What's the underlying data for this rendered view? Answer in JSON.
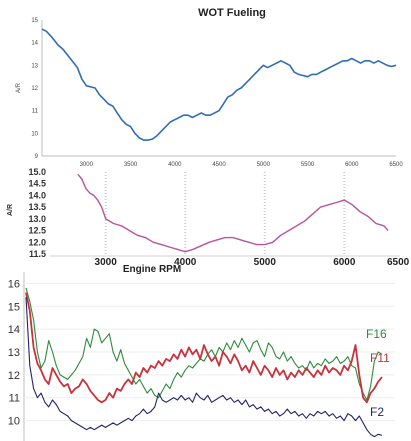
{
  "chart_data": [
    {
      "type": "line",
      "title": "WOT Fueling",
      "ylabel": "A/R",
      "xlabel": "",
      "xlim": [
        2500,
        6500
      ],
      "ylim": [
        9,
        15
      ],
      "x_ticks": [
        "3000",
        "3500",
        "4000",
        "4500",
        "5000",
        "5500",
        "6000",
        "6500"
      ],
      "y_ticks": [
        "9",
        "10",
        "11",
        "12",
        "13",
        "14",
        "15"
      ],
      "grid": false,
      "color": "#2f6db5",
      "series": [
        {
          "x": [
            2500,
            2550,
            2620,
            2680,
            2740,
            2800,
            2860,
            2900,
            2950,
            3000,
            3050,
            3100,
            3150,
            3200,
            3250,
            3300,
            3350,
            3400,
            3450,
            3500,
            3550,
            3600,
            3650,
            3700,
            3750,
            3800,
            3850,
            3900,
            3950,
            4000,
            4050,
            4100,
            4150,
            4200,
            4250,
            4300,
            4350,
            4400,
            4450,
            4500,
            4550,
            4600,
            4650,
            4700,
            4750,
            4800,
            4850,
            4900,
            4950,
            5000,
            5050,
            5100,
            5150,
            5200,
            5250,
            5300,
            5350,
            5400,
            5450,
            5500,
            5550,
            5600,
            5650,
            5700,
            5750,
            5800,
            5850,
            5900,
            5950,
            6000,
            6050,
            6100,
            6150,
            6200,
            6250,
            6300,
            6350,
            6400,
            6450,
            6500
          ],
          "values": [
            14.6,
            14.5,
            14.2,
            13.9,
            13.7,
            13.4,
            13.1,
            12.9,
            12.4,
            12.1,
            12.05,
            12.0,
            11.7,
            11.5,
            11.3,
            11.2,
            10.9,
            10.6,
            10.4,
            10.3,
            10.0,
            9.8,
            9.7,
            9.7,
            9.75,
            9.9,
            10.1,
            10.3,
            10.5,
            10.6,
            10.7,
            10.8,
            10.8,
            10.7,
            10.8,
            10.9,
            10.8,
            10.8,
            10.9,
            11.0,
            11.3,
            11.6,
            11.7,
            11.9,
            12.0,
            12.2,
            12.4,
            12.6,
            12.8,
            13.0,
            12.9,
            13.0,
            13.1,
            13.2,
            13.1,
            13.0,
            12.7,
            12.6,
            12.55,
            12.5,
            12.6,
            12.6,
            12.7,
            12.8,
            12.9,
            13.0,
            13.1,
            13.2,
            13.2,
            13.3,
            13.2,
            13.1,
            13.2,
            13.2,
            13.1,
            13.2,
            13.1,
            13.0,
            12.95,
            13.0
          ]
        }
      ]
    },
    {
      "type": "line",
      "title": "",
      "ylabel": "A/R",
      "xlabel": "Engine RPM",
      "xlim": [
        2300,
        6700
      ],
      "ylim": [
        11.5,
        15.0
      ],
      "x_ticks": [
        "3000",
        "4000",
        "5000",
        "6000",
        "6500"
      ],
      "y_ticks": [
        "11.5",
        "12.0",
        "12.5",
        "13.0",
        "13.5",
        "14.0",
        "14.5",
        "15.0"
      ],
      "grid": false,
      "color": "#b8549e",
      "series": [
        {
          "x": [
            2650,
            2700,
            2750,
            2800,
            2850,
            2900,
            2950,
            3000,
            3100,
            3200,
            3300,
            3400,
            3500,
            3600,
            3700,
            3800,
            3900,
            4000,
            4100,
            4200,
            4300,
            4400,
            4500,
            4600,
            4700,
            4800,
            4900,
            5000,
            5100,
            5200,
            5300,
            5400,
            5500,
            5600,
            5700,
            5800,
            5900,
            6000,
            6100,
            6200,
            6300,
            6400,
            6500,
            6550
          ],
          "values": [
            14.9,
            14.7,
            14.3,
            14.1,
            14.0,
            13.8,
            13.5,
            13.0,
            12.8,
            12.7,
            12.5,
            12.3,
            12.2,
            12.0,
            11.9,
            11.8,
            11.7,
            11.6,
            11.7,
            11.85,
            12.0,
            12.1,
            12.2,
            12.2,
            12.1,
            12.0,
            11.9,
            11.9,
            12.0,
            12.3,
            12.5,
            12.7,
            12.9,
            13.2,
            13.5,
            13.6,
            13.7,
            13.8,
            13.6,
            13.3,
            13.1,
            12.8,
            12.7,
            12.5
          ]
        }
      ]
    },
    {
      "type": "line",
      "title": "",
      "xlabel": "",
      "ylabel": "",
      "ylim": [
        9.5,
        16.5
      ],
      "y_ticks": [
        "10",
        "11",
        "12",
        "13",
        "14",
        "15",
        "16"
      ],
      "grid": false,
      "series": [
        {
          "name": "F16",
          "color": "#2e8b3a",
          "values": [
            15.8,
            15.2,
            14.4,
            13.0,
            12.3,
            12.6,
            13.5,
            13.0,
            12.4,
            12.0,
            11.9,
            11.8,
            12.0,
            12.2,
            12.5,
            12.8,
            13.6,
            13.2,
            14.0,
            13.9,
            13.4,
            13.6,
            13.8,
            13.0,
            12.6,
            13.1,
            12.5,
            12.2,
            11.9,
            11.6,
            11.8,
            11.5,
            11.2,
            11.4,
            11.1,
            11.0,
            11.3,
            11.6,
            11.4,
            11.8,
            12.1,
            11.9,
            12.2,
            12.4,
            12.3,
            12.5,
            12.7,
            12.6,
            12.9,
            13.1,
            12.8,
            13.2,
            13.0,
            13.4,
            13.1,
            13.5,
            13.2,
            13.6,
            13.3,
            13.0,
            13.4,
            13.5,
            13.1,
            12.8,
            13.4,
            13.2,
            12.8,
            12.7,
            13.0,
            12.6,
            12.8,
            12.5,
            12.3,
            12.4,
            12.2,
            12.6,
            12.3,
            12.5,
            12.4,
            12.7,
            12.5,
            12.6,
            12.8,
            12.5,
            12.6,
            12.8,
            12.4,
            12.3,
            11.6,
            11.2,
            10.9,
            11.5,
            12.6,
            13.0,
            12.9
          ]
        },
        {
          "name": "F11",
          "color": "#c8323c",
          "values": [
            15.6,
            14.8,
            13.2,
            12.5,
            12.2,
            11.8,
            11.6,
            12.3,
            12.0,
            11.7,
            11.5,
            11.6,
            11.2,
            11.4,
            11.5,
            11.8,
            11.6,
            11.3,
            11.1,
            10.9,
            10.8,
            10.9,
            11.2,
            11.0,
            11.4,
            11.3,
            11.6,
            11.8,
            11.6,
            12.1,
            11.9,
            12.3,
            12.1,
            12.4,
            12.3,
            12.6,
            12.4,
            12.7,
            12.6,
            12.9,
            12.7,
            13.1,
            12.8,
            13.2,
            12.9,
            13.1,
            12.7,
            13.3,
            12.9,
            12.6,
            12.8,
            12.4,
            13.0,
            12.8,
            12.5,
            12.9,
            12.6,
            12.2,
            12.4,
            12.1,
            12.6,
            12.3,
            12.0,
            12.4,
            12.2,
            11.9,
            12.3,
            12.0,
            12.2,
            11.8,
            12.1,
            11.9,
            12.2,
            12.0,
            12.3,
            12.1,
            11.9,
            12.2,
            12.0,
            12.4,
            12.1,
            12.3,
            12.2,
            12.0,
            12.4,
            12.2,
            12.6,
            13.3,
            12.0,
            11.0,
            10.8,
            11.2,
            11.4,
            11.7,
            11.9
          ]
        },
        {
          "name": "F2",
          "color": "#23236b",
          "values": [
            15.4,
            12.4,
            11.4,
            11.0,
            11.2,
            10.8,
            10.6,
            10.9,
            10.7,
            10.4,
            10.3,
            10.2,
            10.0,
            9.9,
            9.8,
            9.7,
            9.6,
            9.7,
            9.6,
            9.7,
            9.8,
            9.7,
            9.8,
            9.9,
            9.8,
            9.9,
            10.0,
            10.1,
            10.0,
            10.2,
            10.3,
            10.5,
            10.3,
            10.4,
            10.6,
            11.2,
            10.9,
            10.8,
            10.9,
            11.0,
            10.9,
            11.1,
            10.9,
            11.0,
            10.8,
            11.2,
            11.0,
            10.9,
            11.1,
            10.8,
            10.9,
            11.0,
            11.1,
            10.9,
            11.0,
            10.8,
            10.9,
            10.7,
            10.9,
            10.6,
            10.7,
            10.5,
            10.6,
            10.4,
            10.5,
            10.3,
            10.4,
            10.2,
            10.3,
            10.5,
            10.3,
            10.4,
            10.2,
            10.3,
            10.1,
            10.3,
            10.2,
            10.4,
            10.3,
            10.4,
            10.2,
            10.3,
            10.1,
            10.2,
            10.0,
            10.3,
            10.2,
            10.0,
            10.2,
            9.9,
            9.6,
            9.4,
            9.3,
            9.4,
            9.35
          ]
        }
      ]
    }
  ]
}
